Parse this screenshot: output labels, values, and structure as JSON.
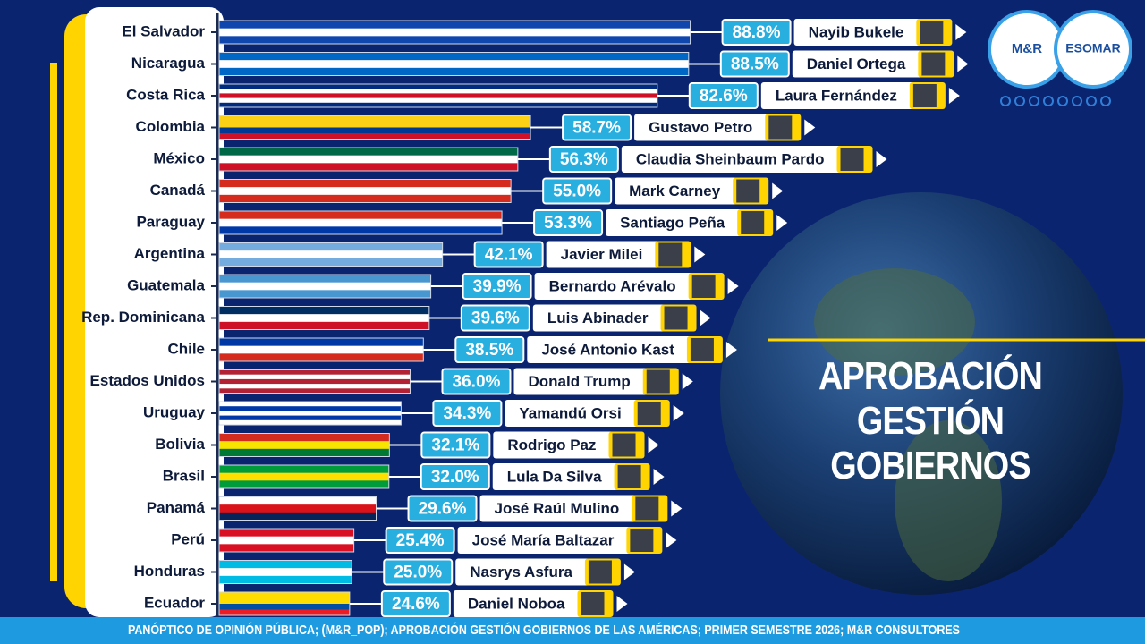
{
  "chart_data": {
    "type": "bar",
    "orientation": "horizontal",
    "title": "APROBACIÓN GESTIÓN GOBIERNOS",
    "source": "PANÓPTICO DE OPINIÓN PÚBLICA; (M&R_POP); APROBACIÓN GESTIÓN GOBIERNOS DE LAS AMÉRICAS; PRIMER SEMESTRE 2026; M&R CONSULTORES",
    "logos": [
      "M&R",
      "ESOMAR"
    ],
    "categories": [
      "El Salvador",
      "Nicaragua",
      "Costa Rica",
      "Colombia",
      "México",
      "Canadá",
      "Paraguay",
      "Argentina",
      "Guatemala",
      "Rep. Dominicana",
      "Chile",
      "Estados Unidos",
      "Uruguay",
      "Bolivia",
      "Brasil",
      "Panamá",
      "Perú",
      "Honduras",
      "Ecuador"
    ],
    "values": [
      88.8,
      88.5,
      82.6,
      58.7,
      56.3,
      55.0,
      53.3,
      42.1,
      39.9,
      39.6,
      38.5,
      36.0,
      34.3,
      32.1,
      32.0,
      29.6,
      25.4,
      25.0,
      24.6
    ],
    "value_labels": [
      "88.8%",
      "88.5%",
      "82.6%",
      "58.7%",
      "56.3%",
      "55.0%",
      "53.3%",
      "42.1%",
      "39.9%",
      "39.6%",
      "38.5%",
      "36.0%",
      "34.3%",
      "32.1%",
      "32.0%",
      "29.6%",
      "25.4%",
      "25.0%",
      "24.6%"
    ],
    "leaders": [
      "Nayib Bukele",
      "Daniel Ortega",
      "Laura Fernández",
      "Gustavo Petro",
      "Claudia Sheinbaum Pardo",
      "Mark Carney",
      "Santiago Peña",
      "Javier Milei",
      "Bernardo Arévalo",
      "Luis Abinader",
      "José Antonio Kast",
      "Donald Trump",
      "Yamandú Orsi",
      "Rodrigo Paz",
      "Lula Da Silva",
      "José Raúl Mulino",
      "José María Baltazar",
      "Nasrys Asfura",
      "Daniel Noboa"
    ],
    "colors": [
      [
        "#0f47af",
        "#ffffff",
        "#0f47af"
      ],
      [
        "#0067c6",
        "#ffffff",
        "#0067c6"
      ],
      [
        "#002b7f",
        "#ffffff",
        "#ce1126",
        "#ffffff",
        "#002b7f"
      ],
      [
        "#fcd116",
        "#fcd116",
        "#003893",
        "#ce1126"
      ],
      [
        "#006847",
        "#ffffff",
        "#ce1126"
      ],
      [
        "#d52b1e",
        "#ffffff",
        "#d52b1e"
      ],
      [
        "#d52b1e",
        "#ffffff",
        "#0038a8"
      ],
      [
        "#74acdf",
        "#ffffff",
        "#74acdf"
      ],
      [
        "#4997d0",
        "#ffffff",
        "#4997d0"
      ],
      [
        "#002d62",
        "#ffffff",
        "#ce1126"
      ],
      [
        "#0039a6",
        "#ffffff",
        "#d52b1e"
      ],
      [
        "#b22234",
        "#ffffff",
        "#b22234",
        "#ffffff",
        "#b22234"
      ],
      [
        "#ffffff",
        "#0038a8",
        "#ffffff",
        "#0038a8",
        "#ffffff"
      ],
      [
        "#d52b1e",
        "#f9e300",
        "#007934"
      ],
      [
        "#009c3b",
        "#ffdf00",
        "#009c3b"
      ],
      [
        "#ffffff",
        "#da121a",
        "#072357"
      ],
      [
        "#d91023",
        "#ffffff",
        "#d91023"
      ],
      [
        "#00bce4",
        "#ffffff",
        "#00bce4"
      ],
      [
        "#ffdd00",
        "#ffdd00",
        "#034ea2",
        "#ed1c24"
      ]
    ],
    "label_color": "#29aee0",
    "name_color": "#ffd400"
  }
}
